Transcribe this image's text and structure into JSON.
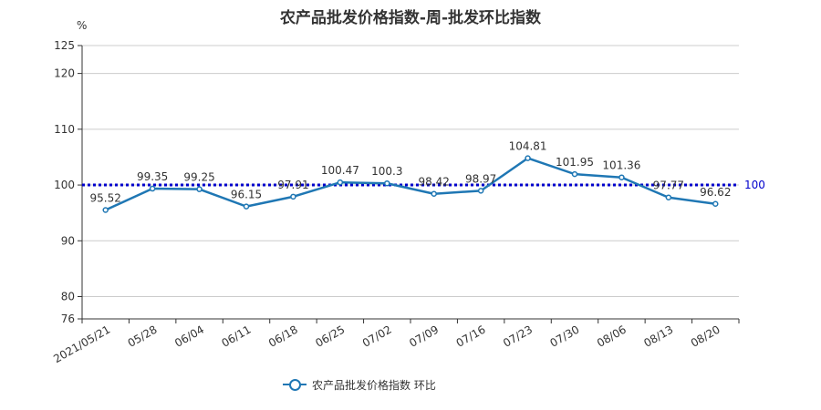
{
  "chart_data": {
    "type": "line",
    "title": "农产品批发价格指数-周-批发环比指数",
    "ylabel": "%",
    "xlabel": "",
    "categories": [
      "2021/05/21",
      "05/28",
      "06/04",
      "06/11",
      "06/18",
      "06/25",
      "07/02",
      "07/09",
      "07/16",
      "07/23",
      "07/30",
      "08/06",
      "08/13",
      "08/20"
    ],
    "series": [
      {
        "name": "农产品批发价格指数  环比",
        "values": [
          95.52,
          99.35,
          99.25,
          96.15,
          97.91,
          100.47,
          100.3,
          98.42,
          98.97,
          104.81,
          101.95,
          101.36,
          97.77,
          96.62
        ],
        "value_labels": [
          "95.52",
          "99.35",
          "99.25",
          "96.15",
          "97.91",
          "100.47",
          "100.3",
          "98.42",
          "98.97",
          "104.81",
          "101.95",
          "101.36",
          "97.77",
          "96.62"
        ]
      }
    ],
    "ylim": [
      76,
      125
    ],
    "yticks": [
      76,
      80,
      90,
      100,
      110,
      120,
      125
    ],
    "grid": true,
    "legend_position": "bottom-center",
    "reference_line": {
      "value": 100,
      "label": "100",
      "style": "dotted"
    },
    "colors": {
      "series": "#1f77b4",
      "reference": "#0000cc",
      "grid": "#cccccc",
      "axis": "#333333"
    }
  }
}
